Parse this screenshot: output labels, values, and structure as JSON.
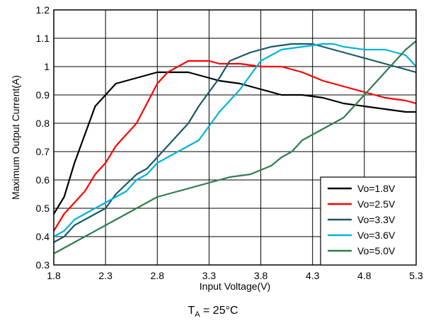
{
  "chart_data": {
    "type": "line",
    "xlabel": "Input Voltage(V)",
    "ylabel": "Maximum Output Current(A)",
    "xlim": [
      1.8,
      5.3
    ],
    "ylim": [
      0.3,
      1.2
    ],
    "xticks": [
      "1.8",
      "2.3",
      "2.8",
      "3.3",
      "3.8",
      "4.3",
      "4.8",
      "5.3"
    ],
    "yticks": [
      "0.3",
      "0.4",
      "0.5",
      "0.6",
      "0.7",
      "0.8",
      "0.9",
      "1",
      "1.1",
      "1.2"
    ],
    "grid": true,
    "legend_position": "bottom-right",
    "series": [
      {
        "name": "Vo=1.8V",
        "color": "#000000",
        "x": [
          1.8,
          1.9,
          2.0,
          2.1,
          2.2,
          2.3,
          2.4,
          2.6,
          2.8,
          3.0,
          3.1,
          3.2,
          3.4,
          3.6,
          3.8,
          4.0,
          4.2,
          4.4,
          4.6,
          4.8,
          5.0,
          5.2,
          5.3
        ],
        "y": [
          0.48,
          0.54,
          0.66,
          0.76,
          0.86,
          0.9,
          0.94,
          0.96,
          0.98,
          0.98,
          0.98,
          0.97,
          0.95,
          0.94,
          0.92,
          0.9,
          0.9,
          0.89,
          0.87,
          0.86,
          0.85,
          0.84,
          0.84
        ]
      },
      {
        "name": "Vo=2.5V",
        "color": "#ff0000",
        "x": [
          1.8,
          1.9,
          2.0,
          2.1,
          2.2,
          2.3,
          2.4,
          2.6,
          2.8,
          2.9,
          3.0,
          3.1,
          3.3,
          3.4,
          3.6,
          3.8,
          4.0,
          4.2,
          4.4,
          4.6,
          4.8,
          5.0,
          5.2,
          5.3
        ],
        "y": [
          0.42,
          0.48,
          0.52,
          0.56,
          0.62,
          0.66,
          0.72,
          0.8,
          0.94,
          0.98,
          1.0,
          1.02,
          1.02,
          1.01,
          1.01,
          1.0,
          1.0,
          0.98,
          0.95,
          0.93,
          0.91,
          0.89,
          0.88,
          0.87
        ]
      },
      {
        "name": "Vo=3.3V",
        "color": "#1b5967",
        "x": [
          1.8,
          1.9,
          2.0,
          2.2,
          2.3,
          2.4,
          2.6,
          2.7,
          2.9,
          3.1,
          3.2,
          3.4,
          3.5,
          3.7,
          3.9,
          4.1,
          4.3,
          4.5,
          4.7,
          4.9,
          5.1,
          5.3
        ],
        "y": [
          0.38,
          0.4,
          0.44,
          0.48,
          0.5,
          0.55,
          0.62,
          0.64,
          0.72,
          0.8,
          0.86,
          0.96,
          1.02,
          1.05,
          1.07,
          1.08,
          1.08,
          1.06,
          1.04,
          1.02,
          1.0,
          0.98
        ]
      },
      {
        "name": "Vo=3.6V",
        "color": "#00b4d8",
        "x": [
          1.8,
          1.9,
          2.0,
          2.2,
          2.4,
          2.5,
          2.6,
          2.7,
          2.8,
          3.0,
          3.1,
          3.2,
          3.4,
          3.6,
          3.8,
          4.0,
          4.2,
          4.4,
          4.5,
          4.6,
          4.8,
          5.0,
          5.2,
          5.3
        ],
        "y": [
          0.4,
          0.42,
          0.46,
          0.5,
          0.54,
          0.56,
          0.6,
          0.62,
          0.66,
          0.7,
          0.72,
          0.74,
          0.84,
          0.92,
          1.02,
          1.06,
          1.07,
          1.08,
          1.08,
          1.07,
          1.06,
          1.06,
          1.04,
          1.0
        ]
      },
      {
        "name": "Vo=5.0V",
        "color": "#2f7d4f",
        "x": [
          1.8,
          2.0,
          2.4,
          2.8,
          3.0,
          3.3,
          3.5,
          3.7,
          3.9,
          4.0,
          4.1,
          4.2,
          4.4,
          4.6,
          4.8,
          5.0,
          5.2,
          5.3
        ],
        "y": [
          0.34,
          0.38,
          0.46,
          0.54,
          0.56,
          0.59,
          0.61,
          0.62,
          0.65,
          0.68,
          0.7,
          0.74,
          0.78,
          0.82,
          0.9,
          0.98,
          1.06,
          1.09
        ]
      }
    ]
  },
  "caption": {
    "main": "T",
    "sub": "A",
    "rest": " = 25°C"
  }
}
